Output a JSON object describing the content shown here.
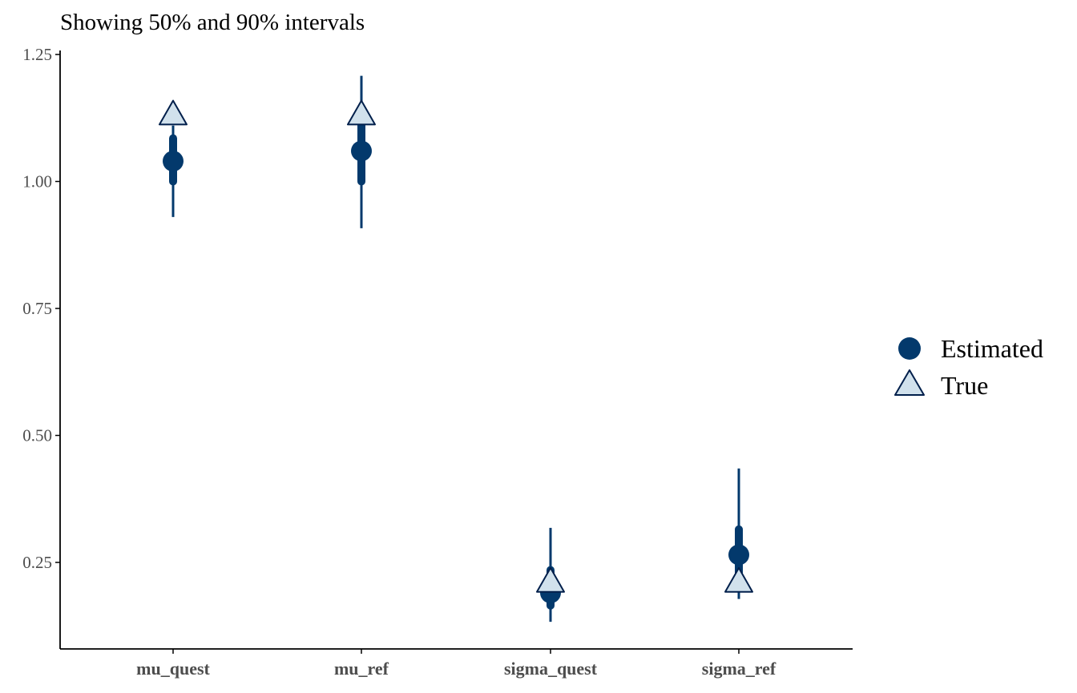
{
  "chart_data": {
    "type": "scatter",
    "subtitle": "Showing 50% and 90% intervals",
    "categories": [
      "mu_quest",
      "mu_ref",
      "sigma_quest",
      "sigma_ref"
    ],
    "ylim": [
      0.08,
      1.26
    ],
    "yticks": [
      {
        "value": 0.25,
        "label": "0.25"
      },
      {
        "value": 0.5,
        "label": "0.50"
      },
      {
        "value": 0.75,
        "label": "0.75"
      },
      {
        "value": 1.0,
        "label": "1.00"
      },
      {
        "value": 1.25,
        "label": "1.25"
      }
    ],
    "grid": false,
    "legend_position": "right",
    "series": [
      {
        "name": "Estimated",
        "marker": "circle",
        "values": [
          1.04,
          1.06,
          0.19,
          0.265
        ],
        "interval_50": [
          [
            1.0,
            1.085
          ],
          [
            1.0,
            1.11
          ],
          [
            0.165,
            0.235
          ],
          [
            0.23,
            0.315
          ]
        ],
        "interval_90": [
          [
            0.93,
            1.11
          ],
          [
            0.908,
            1.208
          ],
          [
            0.133,
            0.318
          ],
          [
            0.178,
            0.435
          ]
        ]
      },
      {
        "name": "True",
        "marker": "triangle",
        "values": [
          1.13,
          1.13,
          0.21,
          0.21
        ]
      }
    ],
    "colors": {
      "estimated": "#03396c",
      "true_fill": "#d1e1ec",
      "true_stroke": "#011f4b",
      "axis": "#000000",
      "tick_label": "#4d4d4d"
    }
  }
}
